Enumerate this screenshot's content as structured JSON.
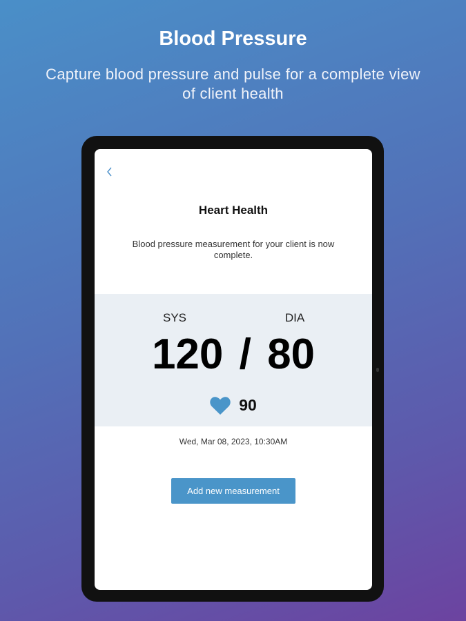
{
  "hero": {
    "title": "Blood Pressure",
    "subtitle": "Capture blood pressure and pulse for a complete view of client health"
  },
  "screen": {
    "back_icon": "chevron-left-icon",
    "title": "Heart Health",
    "description": "Blood pressure measurement for your client is now complete.",
    "reading": {
      "sys_label": "SYS",
      "dia_label": "DIA",
      "value": "120 / 80",
      "pulse_icon": "heart-icon",
      "pulse": "90"
    },
    "timestamp": "Wed, Mar 08, 2023, 10:30AM",
    "add_button": "Add new measurement"
  },
  "colors": {
    "accent": "#4a95c9",
    "panel": "#eaeff4"
  }
}
